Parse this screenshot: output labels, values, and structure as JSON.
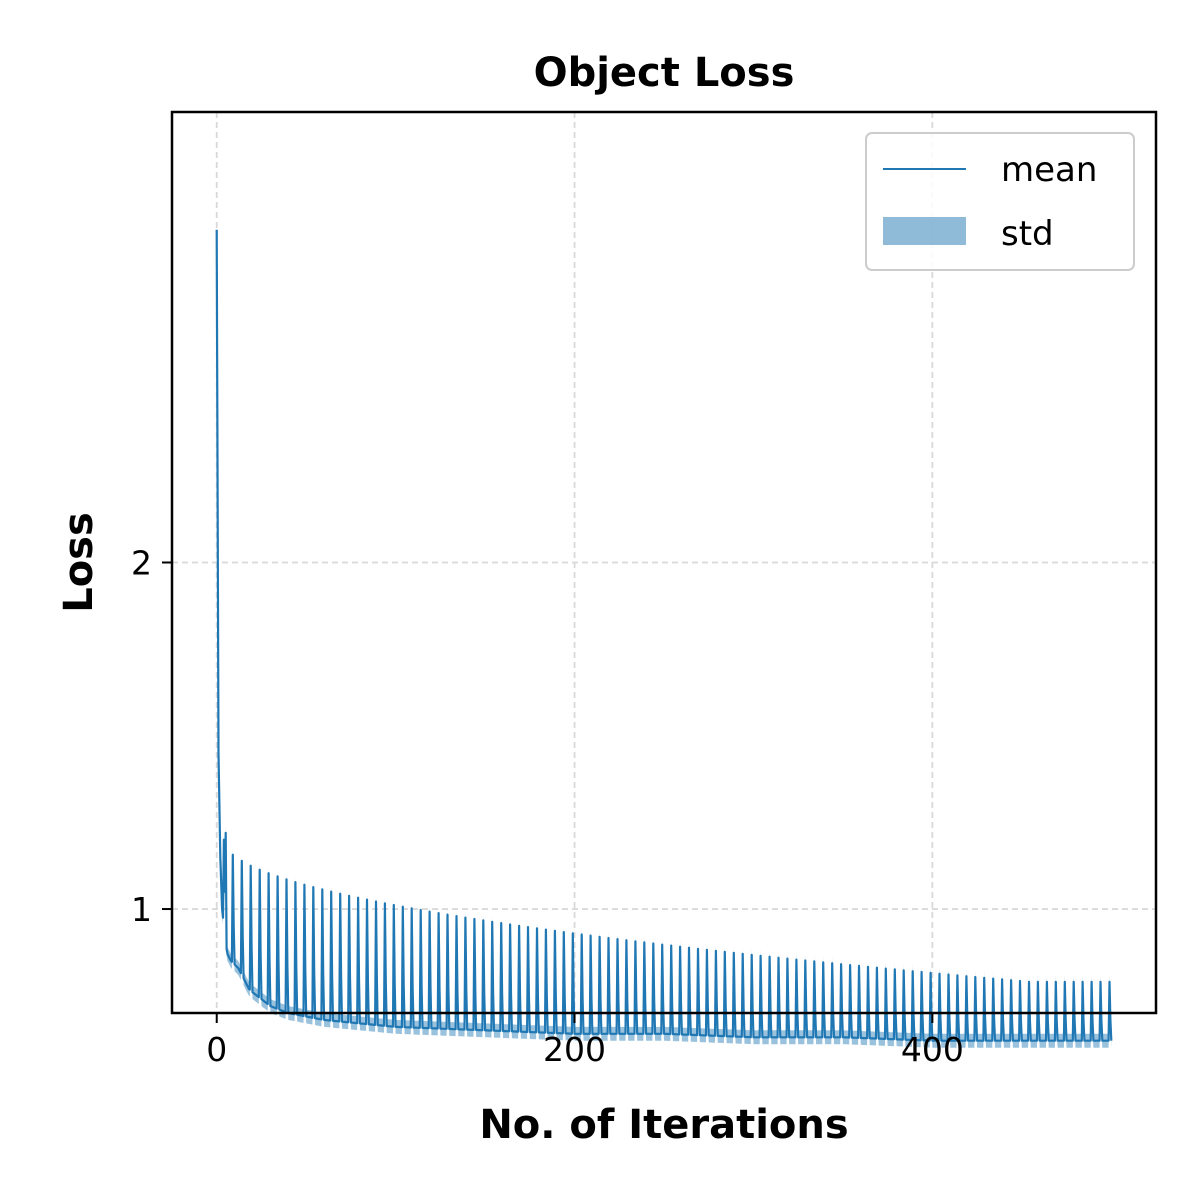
{
  "chart_data": {
    "type": "line",
    "title": "Object Loss",
    "xlabel": "No. of Iterations",
    "ylabel": "Loss",
    "xlim": [
      -25,
      525
    ],
    "ylim": [
      0.7,
      3.3
    ],
    "xticks": [
      0,
      200,
      400
    ],
    "xtick_labels": [
      "0",
      "200",
      "400"
    ],
    "yticks": [
      1,
      2
    ],
    "ytick_labels": [
      "1",
      "2"
    ],
    "grid": true,
    "legend": {
      "placement": "top-right",
      "entries": [
        "mean",
        "std"
      ]
    },
    "colors": {
      "line": "#1f77b4",
      "band": "#1f77b4",
      "grid": "#d9d9d9"
    },
    "series": [
      {
        "name": "mean",
        "x": [
          0,
          1,
          2,
          3,
          4,
          5,
          6,
          7,
          8,
          10,
          12,
          14,
          16,
          18,
          20,
          25,
          30,
          40,
          50,
          60,
          80,
          100,
          150,
          200,
          250,
          300,
          350,
          400,
          450,
          500
        ],
        "values": [
          2.96,
          1.45,
          1.15,
          1.0,
          0.95,
          0.9,
          0.87,
          0.86,
          0.85,
          0.84,
          0.83,
          0.81,
          0.79,
          0.77,
          0.76,
          0.74,
          0.72,
          0.7,
          0.69,
          0.68,
          0.67,
          0.66,
          0.65,
          0.64,
          0.64,
          0.63,
          0.63,
          0.62,
          0.62,
          0.62
        ],
        "periodic_spike": {
          "period": 5,
          "peak_values_start": 1.2,
          "peak_values_end": 0.79
        }
      },
      {
        "name": "std",
        "band_halfwidth": 0.02
      }
    ]
  }
}
